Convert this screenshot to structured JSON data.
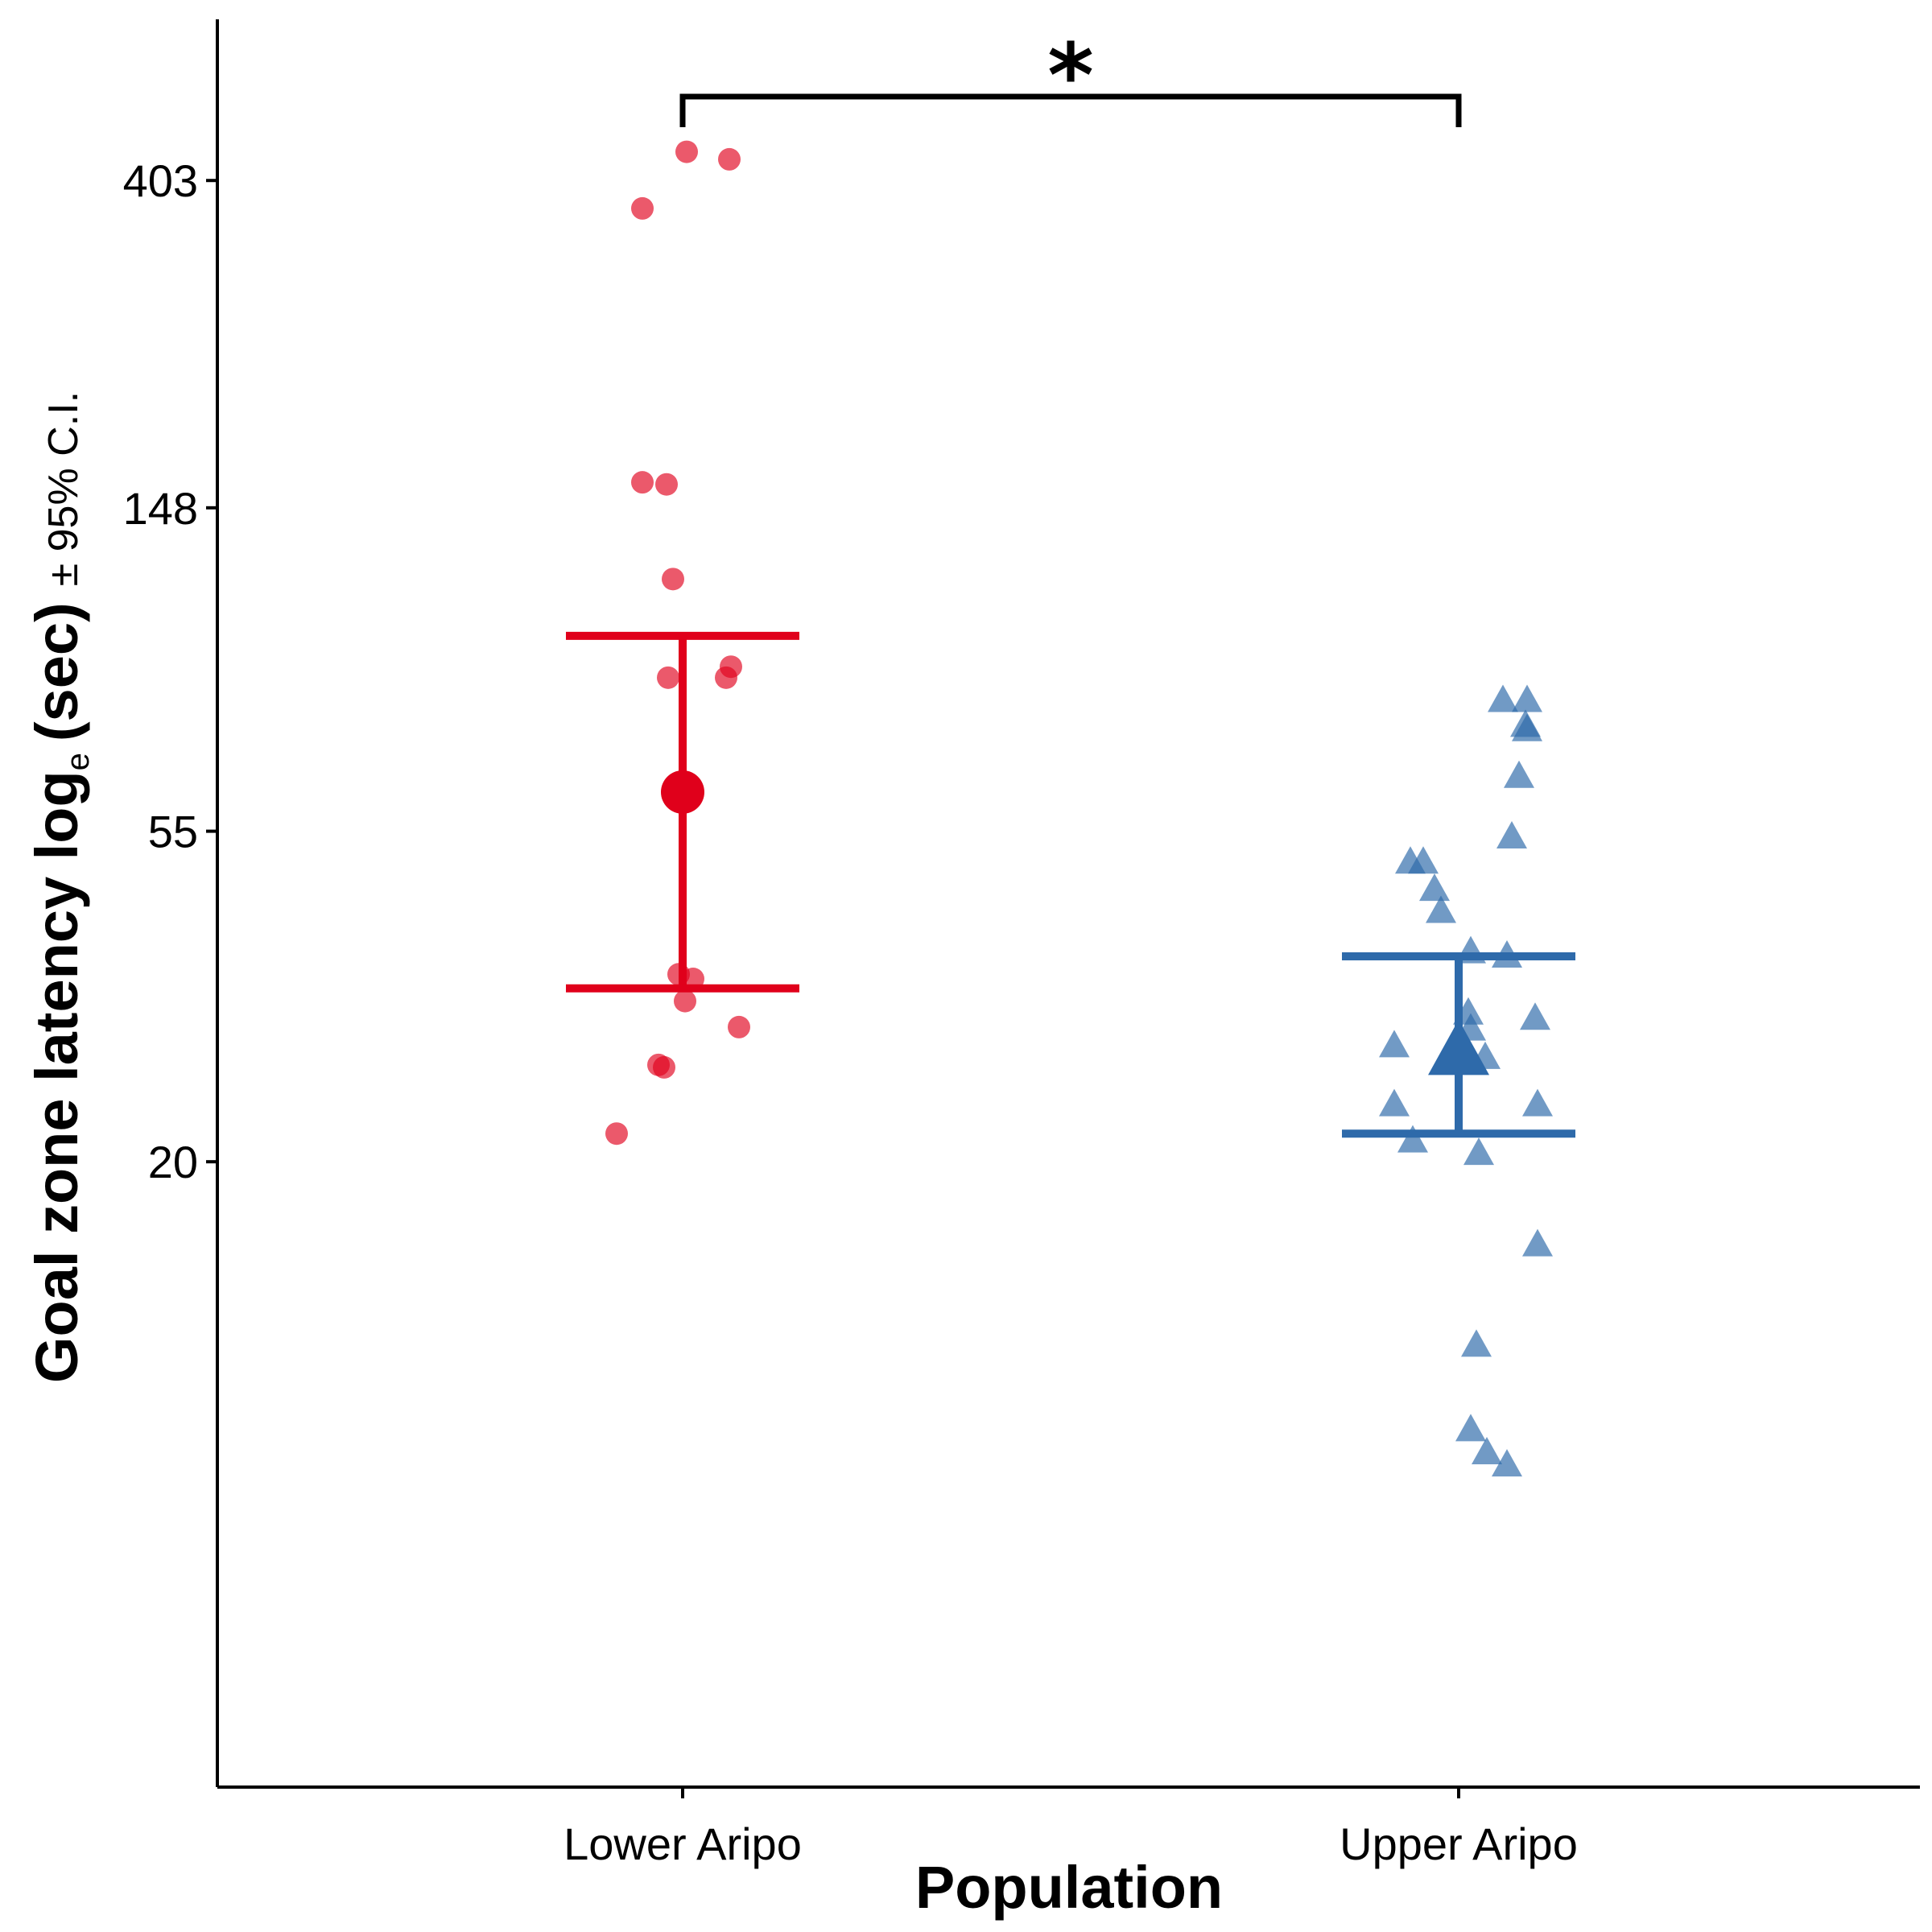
{
  "chart_data": {
    "type": "scatter",
    "xlabel": "Population",
    "ylabel_parts": {
      "main": "Goal zone latency log",
      "subscript": "e",
      "unit": "(sec)",
      "ci": "± 95% C.I."
    },
    "y_scale": "log",
    "y_ticks": [
      20,
      55,
      148,
      403
    ],
    "y_range": [
      2.95,
      660
    ],
    "categories": [
      "Lower Aripo",
      "Upper Aripo"
    ],
    "series": [
      {
        "category": "Lower Aripo",
        "marker": "circle",
        "color": "#E0001B",
        "mean": 62,
        "ci": [
          34,
          100
        ],
        "points": [
          [
            0.005,
            440
          ],
          [
            0.058,
            430
          ],
          [
            -0.05,
            370
          ],
          [
            -0.05,
            160
          ],
          [
            -0.02,
            159
          ],
          [
            -0.012,
            119
          ],
          [
            0.06,
            91
          ],
          [
            -0.018,
            88
          ],
          [
            0.054,
            88
          ],
          [
            -0.005,
            35.5
          ],
          [
            0.013,
            35
          ],
          [
            0.003,
            32.7
          ],
          [
            0.07,
            30.2
          ],
          [
            -0.03,
            26.9
          ],
          [
            -0.023,
            26.7
          ],
          [
            -0.082,
            21.8
          ]
        ]
      },
      {
        "category": "Upper Aripo",
        "marker": "triangle",
        "color": "#2E6AAA",
        "mean": 28,
        "ci": [
          21.8,
          37.5
        ],
        "points": [
          [
            0.055,
            82
          ],
          [
            0.085,
            82
          ],
          [
            0.083,
            76
          ],
          [
            0.085,
            75
          ],
          [
            0.075,
            65
          ],
          [
            0.066,
            54
          ],
          [
            -0.06,
            50
          ],
          [
            -0.044,
            50
          ],
          [
            -0.03,
            46
          ],
          [
            -0.022,
            43
          ],
          [
            0.015,
            38
          ],
          [
            0.06,
            37.5
          ],
          [
            0.012,
            31.5
          ],
          [
            0.015,
            30
          ],
          [
            0.095,
            31
          ],
          [
            -0.08,
            28.5
          ],
          [
            0.033,
            27.5
          ],
          [
            -0.08,
            23.8
          ],
          [
            0.098,
            23.8
          ],
          [
            -0.057,
            21.3
          ],
          [
            0.025,
            20.5
          ],
          [
            0.098,
            15.5
          ],
          [
            0.022,
            11.4
          ],
          [
            0.015,
            8.8
          ],
          [
            0.035,
            8.2
          ],
          [
            0.06,
            7.9
          ]
        ]
      }
    ],
    "annotation": {
      "label": "*",
      "between": [
        "Lower Aripo",
        "Upper Aripo"
      ]
    }
  }
}
